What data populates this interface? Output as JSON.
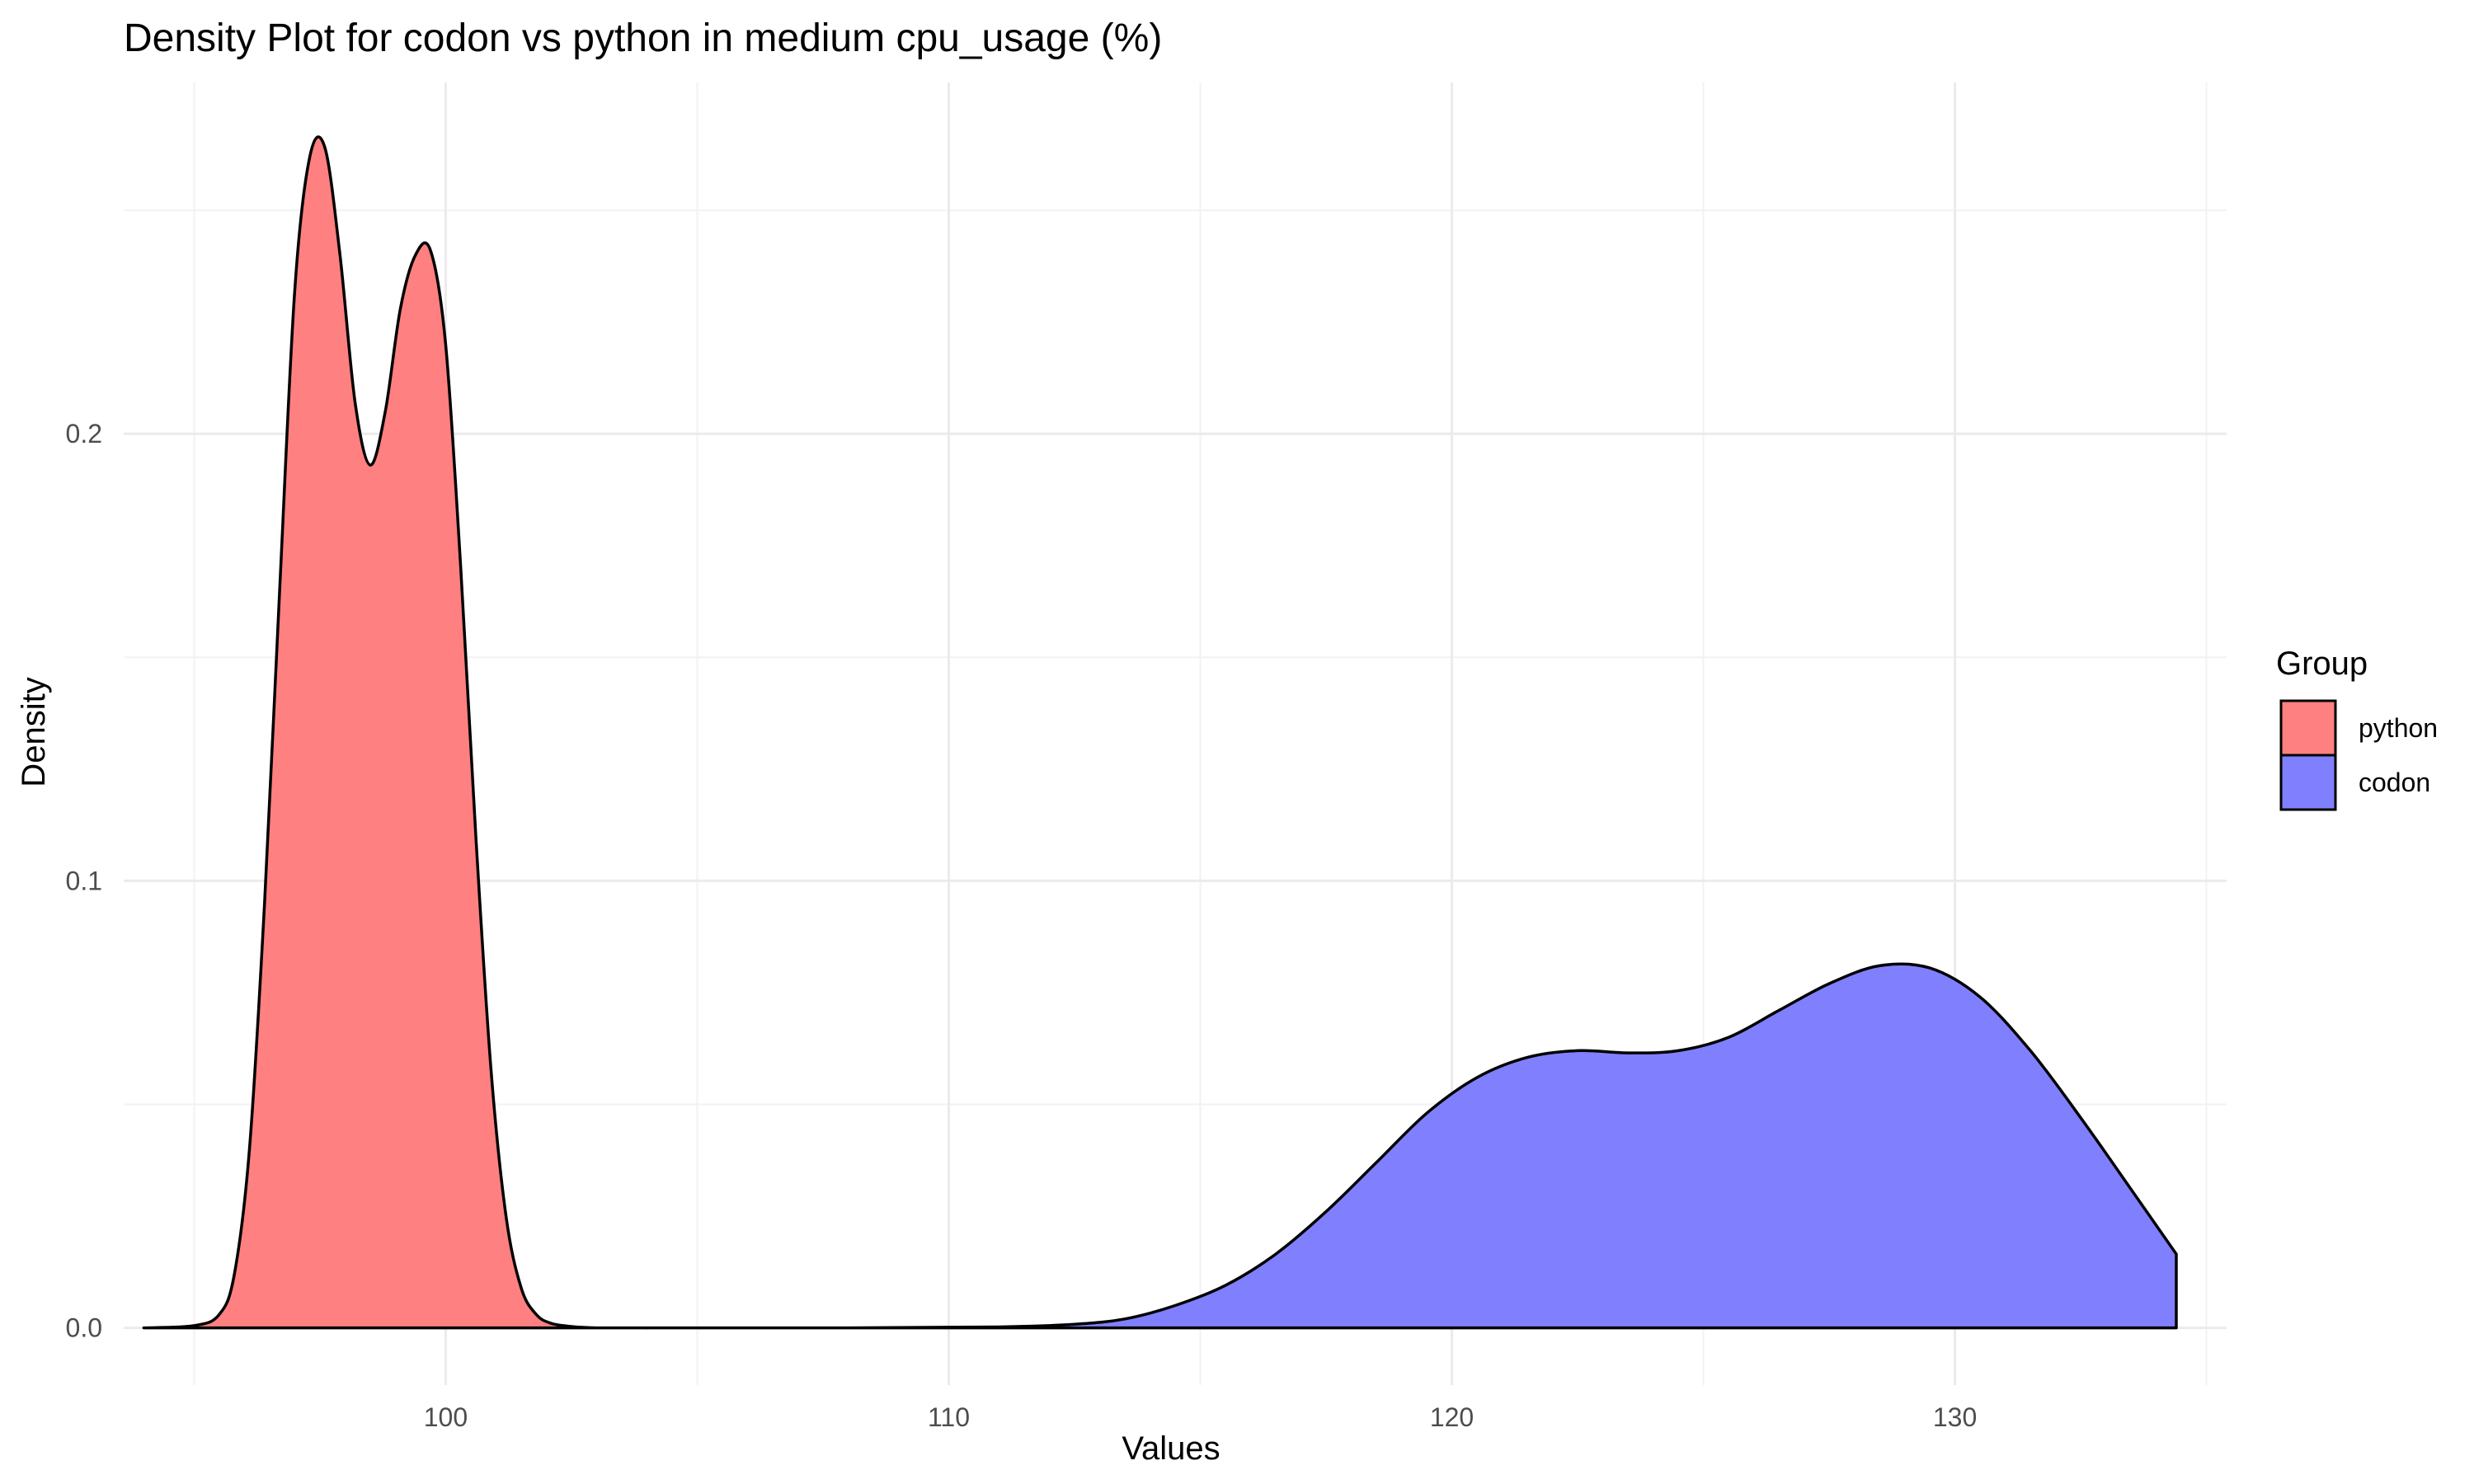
{
  "chart_data": {
    "type": "area",
    "subtype": "density",
    "title": "Density Plot for codon vs python in medium cpu_usage (%)",
    "xlabel": "Values",
    "ylabel": "Density",
    "xlim": [
      93.6,
      135.4
    ],
    "ylim": [
      -0.0128,
      0.2786
    ],
    "x_ticks": [
      100,
      110,
      120,
      130
    ],
    "x_tick_labels": [
      "100",
      "110",
      "120",
      "130"
    ],
    "y_ticks": [
      0.0,
      0.1,
      0.2
    ],
    "y_tick_labels": [
      "0.0",
      "0.1",
      "0.2"
    ],
    "grid": true,
    "legend": {
      "title": "Group",
      "position": "right",
      "entries": [
        {
          "label": "python",
          "color": "#ff8080"
        },
        {
          "label": "codon",
          "color": "#8080ff"
        }
      ]
    },
    "series": [
      {
        "name": "python",
        "color": "#ff8080",
        "x": [
          94.0,
          95.0,
          95.5,
          95.8,
          96.1,
          96.4,
          96.7,
          97.0,
          97.3,
          97.6,
          97.9,
          98.2,
          98.5,
          98.8,
          99.1,
          99.4,
          99.7,
          100.0,
          100.3,
          100.6,
          100.9,
          101.2,
          101.5,
          101.8,
          102.1,
          102.5,
          103.0,
          104.0
        ],
        "y": [
          0.0,
          0.0005,
          0.003,
          0.012,
          0.04,
          0.095,
          0.165,
          0.232,
          0.262,
          0.264,
          0.24,
          0.207,
          0.193,
          0.205,
          0.228,
          0.24,
          0.241,
          0.22,
          0.17,
          0.11,
          0.058,
          0.025,
          0.009,
          0.003,
          0.001,
          0.0003,
          0.0,
          0.0
        ]
      },
      {
        "name": "codon",
        "color": "#8080ff",
        "x": [
          104.0,
          108.0,
          111.0,
          112.5,
          113.5,
          114.5,
          115.5,
          116.5,
          117.5,
          118.5,
          119.5,
          120.5,
          121.5,
          122.5,
          123.5,
          124.5,
          125.5,
          126.5,
          127.5,
          128.5,
          129.5,
          130.5,
          131.5,
          132.5,
          133.5,
          134.4
        ],
        "y": [
          0.0,
          0.0,
          0.0002,
          0.0008,
          0.002,
          0.005,
          0.0095,
          0.0165,
          0.026,
          0.037,
          0.048,
          0.056,
          0.0605,
          0.062,
          0.0615,
          0.062,
          0.065,
          0.071,
          0.077,
          0.081,
          0.0805,
          0.074,
          0.062,
          0.047,
          0.031,
          0.0165
        ]
      }
    ]
  }
}
